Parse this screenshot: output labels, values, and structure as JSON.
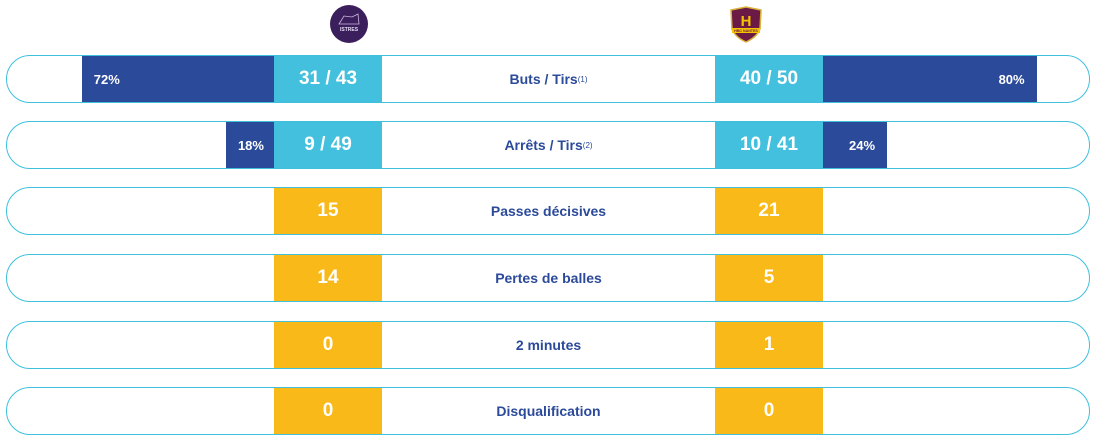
{
  "teams": {
    "home": {
      "name": "ISTRES",
      "logo_color": "#3b1f5c"
    },
    "away": {
      "name": "HBC NANTES",
      "logo_color": "#6b1a45"
    }
  },
  "colors": {
    "ratio": "#42c0de",
    "count": "#f9b918",
    "percent": "#2b4a9a",
    "border": "#3fc0dc"
  },
  "rows": [
    {
      "label": "Buts / Tirs",
      "sup": "(1)",
      "home": "31 / 43",
      "away": "40 / 50",
      "home_pct": "72%",
      "away_pct": "80%",
      "home_pct_value": 72,
      "away_pct_value": 80,
      "type": "ratio"
    },
    {
      "label": "Arrêts / Tirs",
      "sup": "(2)",
      "home": "9 / 49",
      "away": "10 / 41",
      "home_pct": "18%",
      "away_pct": "24%",
      "home_pct_value": 18,
      "away_pct_value": 24,
      "type": "ratio"
    },
    {
      "label": "Passes décisives",
      "home": "15",
      "away": "21",
      "type": "count"
    },
    {
      "label": "Pertes de balles",
      "home": "14",
      "away": "5",
      "type": "count"
    },
    {
      "label": "2 minutes",
      "home": "0",
      "away": "1",
      "type": "count"
    },
    {
      "label": "Disqualification",
      "home": "0",
      "away": "0",
      "type": "count"
    }
  ]
}
